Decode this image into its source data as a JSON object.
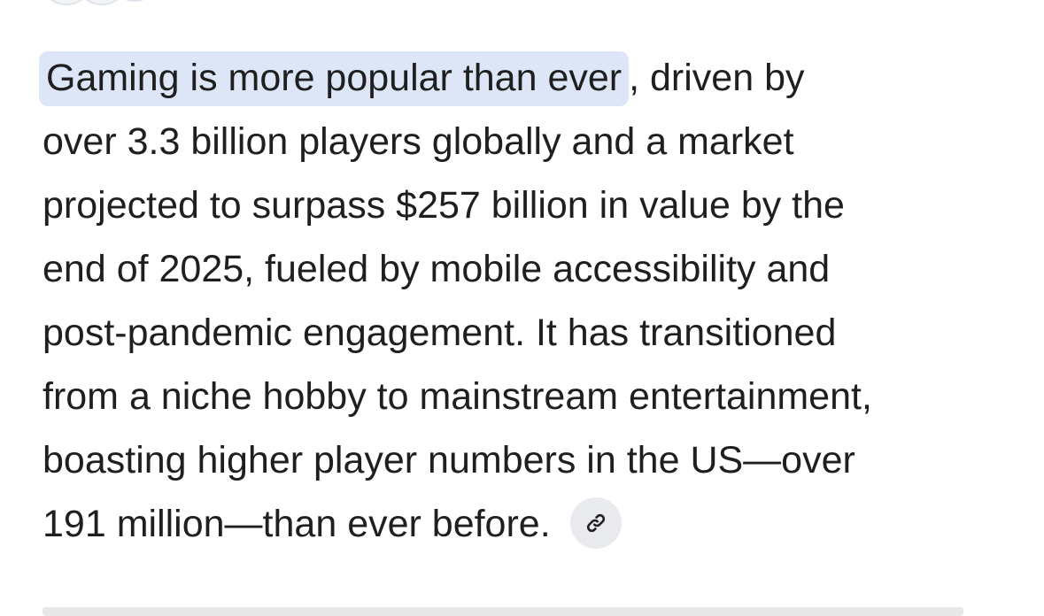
{
  "answer": {
    "highlight": "Gaming is more popular than ever",
    "lines": [
      ", driven by",
      "over 3.3 billion players globally and a market",
      "projected to surpass $257 billion in value by the",
      "end of 2025, fueled by mobile accessibility and",
      "post-pandemic engagement. It has transitioned",
      "from a niche hobby to mainstream entertainment,",
      "boasting higher player numbers in the US—over",
      "191 million—than ever before."
    ]
  }
}
